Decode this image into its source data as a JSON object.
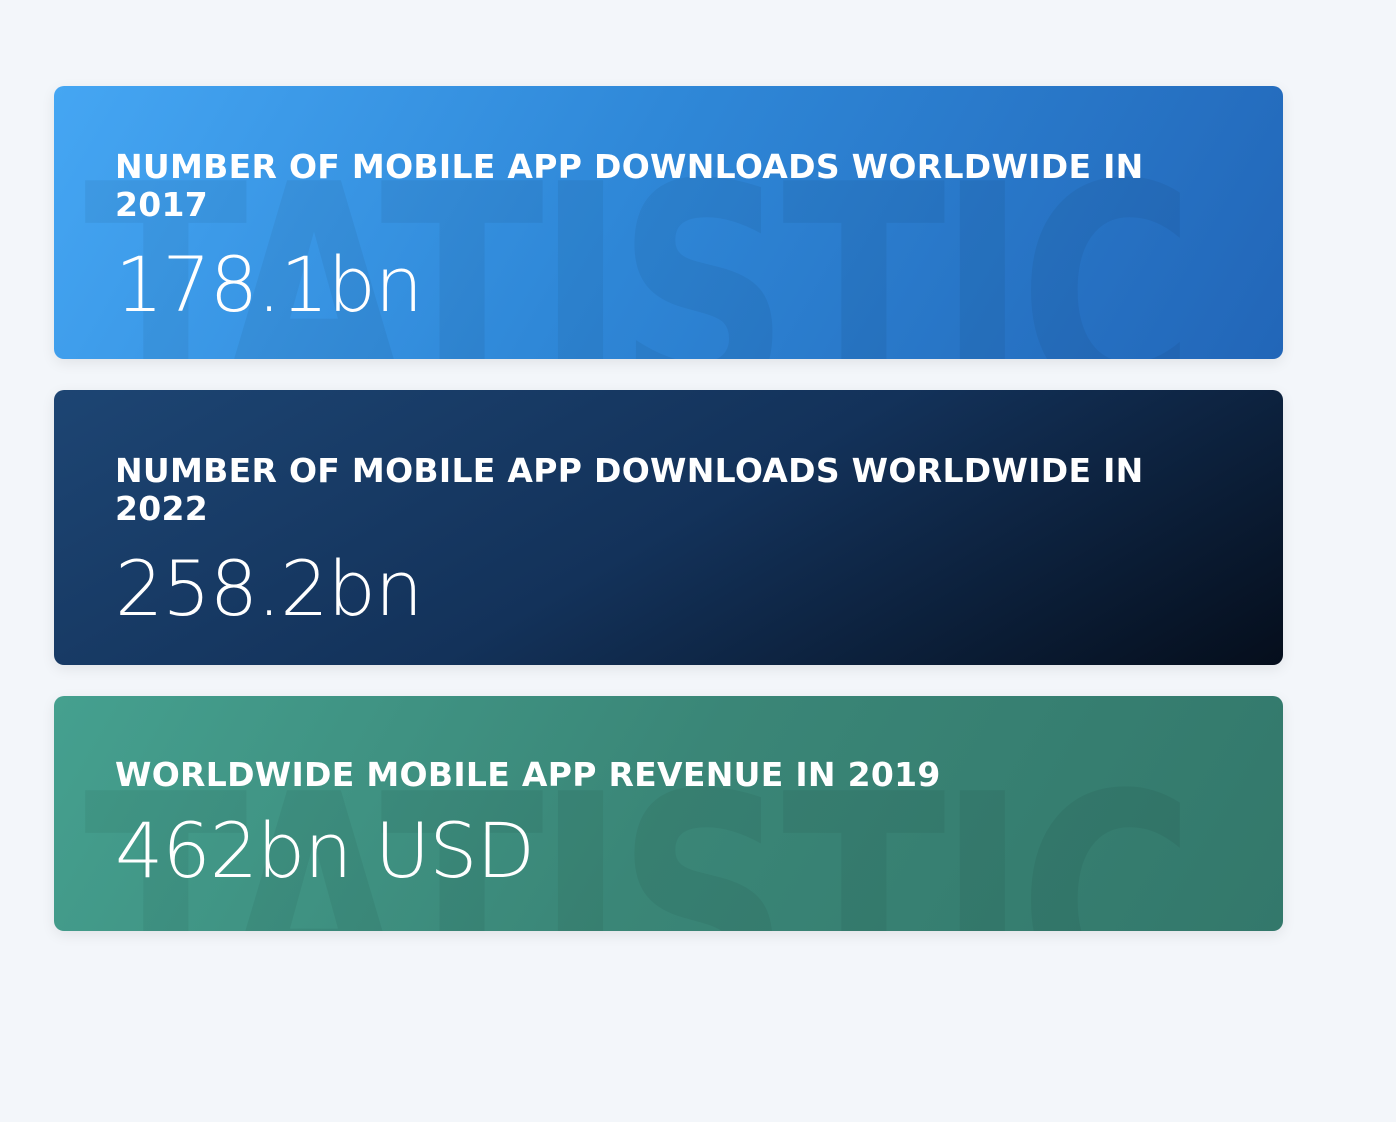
{
  "watermark": "STATISTIC",
  "cards": [
    {
      "title": "Number of mobile app downloads worldwide in 2017",
      "value": "178.1bn",
      "color": "#3a94e4"
    },
    {
      "title": "Number of mobile app downloads worldwide in 2022",
      "value": "258.2bn",
      "color": "#13325a"
    },
    {
      "title": "Worldwide mobile app revenue in 2019",
      "value": "462bn USD",
      "color": "#3a8677"
    }
  ]
}
